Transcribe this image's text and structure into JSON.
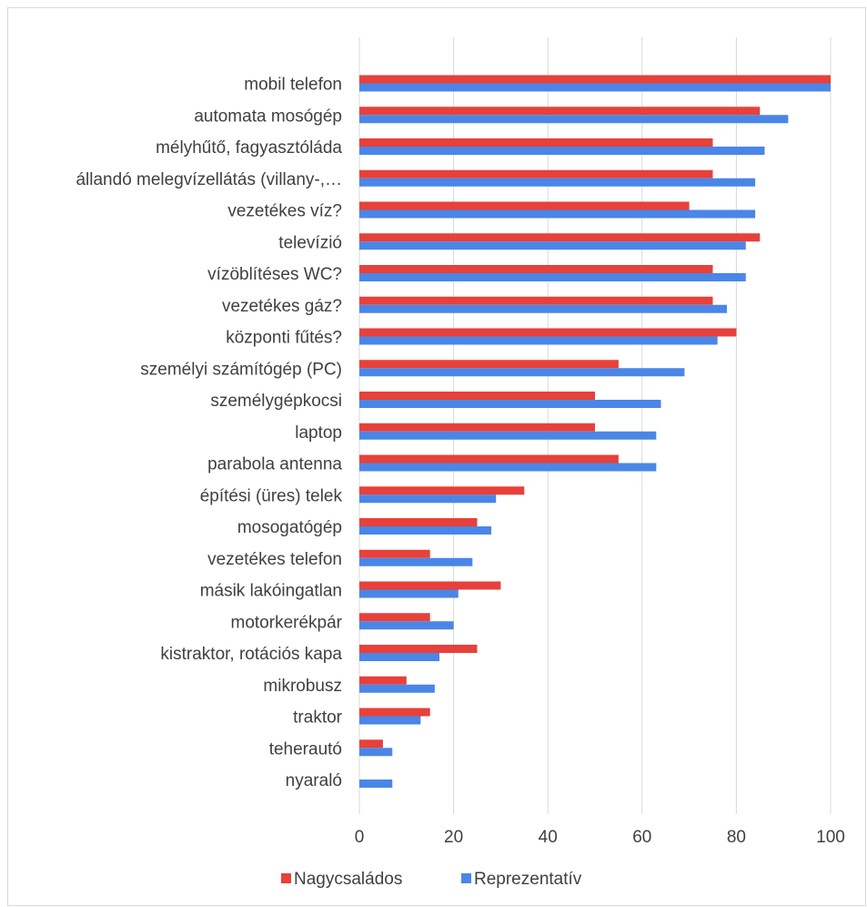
{
  "chart_data": {
    "type": "bar",
    "orientation": "horizontal",
    "categories": [
      "mobil telefon",
      "automata mosógép",
      "mélyhűtő, fagyasztóláda",
      "állandó melegvízellátás (villany-,…",
      "vezetékes víz?",
      "televízió",
      "vízöblítéses WC?",
      "vezetékes gáz?",
      "központi fűtés?",
      "személyi számítógép (PC)",
      "személygépkocsi",
      "laptop",
      "parabola antenna",
      "építési (üres) telek",
      "mosogatógép",
      "vezetékes telefon",
      "másik lakóingatlan",
      "motorkerékpár",
      "kistraktor, rotációs kapa",
      "mikrobusz",
      "traktor",
      "teherautó",
      "nyaraló"
    ],
    "series": [
      {
        "name": "Nagycsaládos",
        "color": "#e8403a",
        "values": [
          100,
          85,
          75,
          75,
          70,
          85,
          75,
          75,
          80,
          55,
          50,
          50,
          55,
          35,
          25,
          15,
          30,
          15,
          25,
          10,
          15,
          5,
          0
        ]
      },
      {
        "name": "Reprezentatív",
        "color": "#4a86e8",
        "values": [
          100,
          91,
          86,
          84,
          84,
          82,
          82,
          78,
          76,
          69,
          64,
          63,
          63,
          29,
          28,
          24,
          21,
          20,
          17,
          16,
          13,
          7,
          7
        ]
      }
    ],
    "xlim": [
      0,
      100
    ],
    "xticks": [
      "0",
      "20",
      "40",
      "60",
      "80",
      "100"
    ],
    "grid": "vertical",
    "legend": "bottom"
  }
}
